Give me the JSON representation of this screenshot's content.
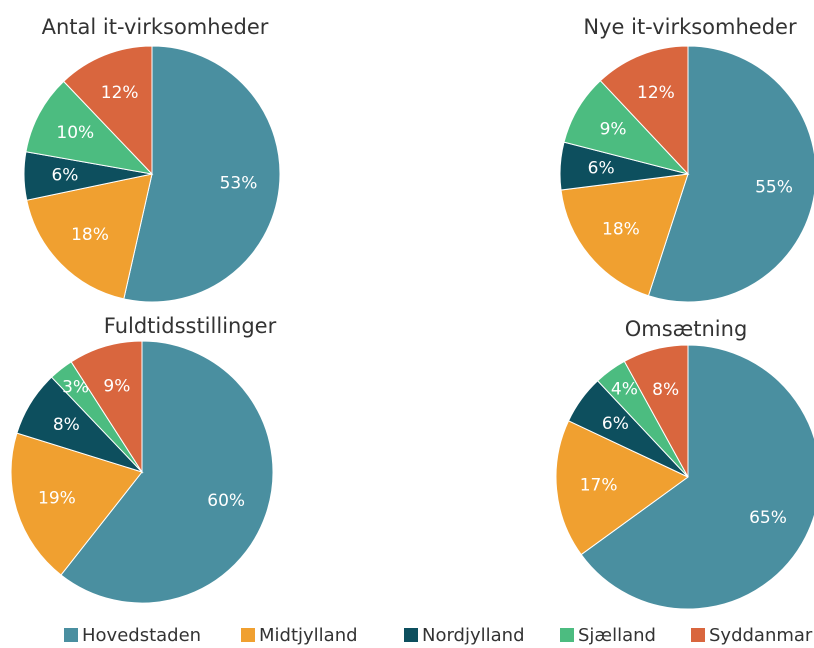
{
  "chart_data": [
    {
      "type": "pie",
      "title": "Antal it-virksomheder",
      "categories": [
        "Hovedstaden",
        "Midtjylland",
        "Nordjylland",
        "Sjælland",
        "Syddanmark"
      ],
      "values": [
        53,
        18,
        6,
        10,
        12
      ],
      "colors": [
        "#4a8fa0",
        "#f0a030",
        "#0d4f5e",
        "#4cbc80",
        "#d9663e"
      ]
    },
    {
      "type": "pie",
      "title": "Nye it-virksomheder",
      "categories": [
        "Hovedstaden",
        "Midtjylland",
        "Nordjylland",
        "Sjælland",
        "Syddanmark"
      ],
      "values": [
        55,
        18,
        6,
        9,
        12
      ],
      "colors": [
        "#4a8fa0",
        "#f0a030",
        "#0d4f5e",
        "#4cbc80",
        "#d9663e"
      ]
    },
    {
      "type": "pie",
      "title": "Fuldtidsstillinger",
      "categories": [
        "Hovedstaden",
        "Midtjylland",
        "Nordjylland",
        "Sjælland",
        "Syddanmark"
      ],
      "values": [
        60,
        19,
        8,
        3,
        9
      ],
      "colors": [
        "#4a8fa0",
        "#f0a030",
        "#0d4f5e",
        "#4cbc80",
        "#d9663e"
      ]
    },
    {
      "type": "pie",
      "title": "Omsætning",
      "categories": [
        "Hovedstaden",
        "Midtjylland",
        "Nordjylland",
        "Sjælland",
        "Syddanmark"
      ],
      "values": [
        65,
        17,
        6,
        4,
        8
      ],
      "colors": [
        "#4a8fa0",
        "#f0a030",
        "#0d4f5e",
        "#4cbc80",
        "#d9663e"
      ]
    }
  ]
}
